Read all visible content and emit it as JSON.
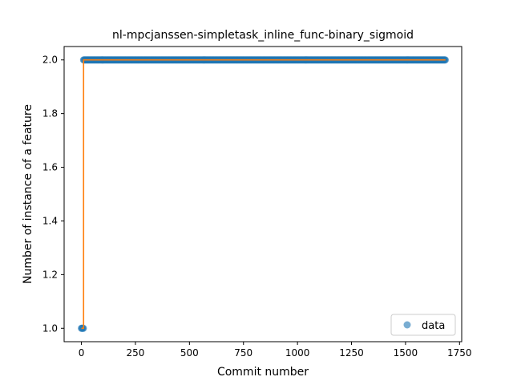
{
  "chart_data": {
    "type": "scatter",
    "title": "nl-mpcjanssen-simpletask_inline_func-binary_sigmoid",
    "xlabel": "Commit number",
    "ylabel": "Number of instance of a feature",
    "xlim": [
      -80,
      1760
    ],
    "ylim": [
      0.95,
      2.05
    ],
    "xticks": [
      0,
      250,
      500,
      750,
      1000,
      1250,
      1500,
      1750
    ],
    "yticks": [
      1.0,
      1.2,
      1.4,
      1.6,
      1.8,
      2.0
    ],
    "xtick_labels": [
      "0",
      "250",
      "500",
      "750",
      "1000",
      "1250",
      "1500",
      "1750"
    ],
    "ytick_labels": [
      "1.0",
      "1.2",
      "1.4",
      "1.6",
      "1.8",
      "2.0"
    ],
    "grid": false,
    "legend": {
      "position": "lower-right",
      "entries": [
        "data"
      ]
    },
    "colors": {
      "data": "#1f77b4",
      "fit": "#ff7f0e"
    },
    "series": [
      {
        "name": "data",
        "style": "markers",
        "segments": [
          {
            "x_start": 0,
            "x_end": 10,
            "y": 1.0
          },
          {
            "x_start": 10,
            "x_end": 1685,
            "y": 2.0
          }
        ]
      },
      {
        "style": "line",
        "x": [
          0,
          10,
          10,
          1685
        ],
        "y": [
          1.0,
          1.0,
          2.0,
          2.0
        ]
      }
    ]
  }
}
